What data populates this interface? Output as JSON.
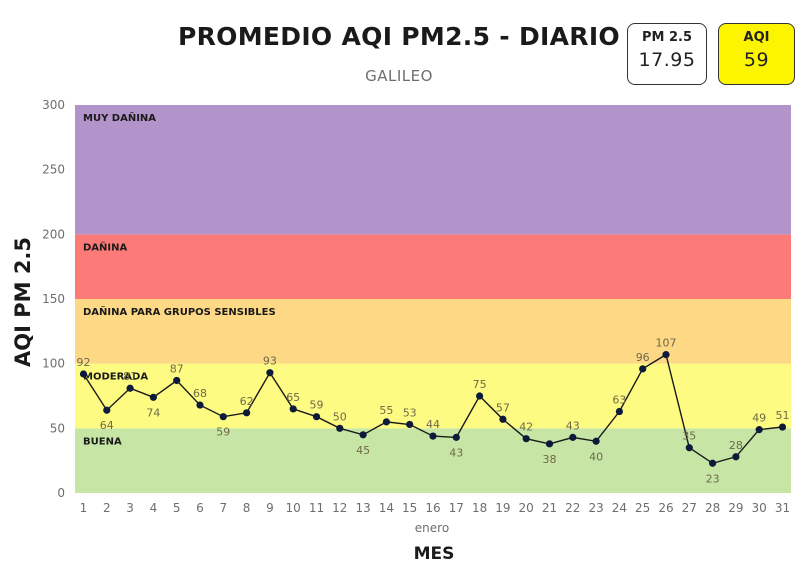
{
  "header": {
    "title": "PROMEDIO AQI PM2.5 - DIARIO",
    "subtitle": "GALILEO"
  },
  "cards": {
    "pm25": {
      "label": "PM 2.5",
      "value": "17.95"
    },
    "aqi": {
      "label": "AQI",
      "value": "59",
      "color": "#fdf400"
    }
  },
  "chart_data": {
    "type": "line",
    "title": "PROMEDIO AQI PM2.5 - DIARIO",
    "subtitle": "GALILEO",
    "xlabel": "MES",
    "x_group_label": "enero",
    "ylabel": "AQI PM 2.5",
    "ylim": [
      0,
      300
    ],
    "yticks": [
      0,
      50,
      100,
      150,
      200,
      250,
      300
    ],
    "x": [
      1,
      2,
      3,
      4,
      5,
      6,
      7,
      8,
      9,
      10,
      11,
      12,
      13,
      14,
      15,
      16,
      17,
      18,
      19,
      20,
      21,
      22,
      23,
      24,
      25,
      26,
      27,
      28,
      29,
      30,
      31
    ],
    "values": [
      92,
      64,
      81,
      74,
      87,
      68,
      59,
      62,
      93,
      65,
      59,
      50,
      45,
      55,
      53,
      44,
      43,
      75,
      57,
      42,
      38,
      43,
      40,
      63,
      96,
      107,
      35,
      23,
      28,
      49,
      51
    ],
    "label_positions": [
      "above",
      "below",
      "above",
      "below",
      "above",
      "above",
      "below",
      "above",
      "above",
      "above",
      "above",
      "above",
      "below",
      "above",
      "above",
      "above",
      "below",
      "above",
      "above",
      "above",
      "below",
      "above",
      "below",
      "above",
      "above",
      "above",
      "above",
      "below",
      "above",
      "above",
      "above"
    ],
    "line_color": "#1a1a1a",
    "marker_color": "#0d1a3a",
    "label_color": "#6f6a4a",
    "grid": false,
    "bands": [
      {
        "label": "BUENA",
        "from": 0,
        "to": 50,
        "color": "#c7e5a5"
      },
      {
        "label": "MODERADA",
        "from": 50,
        "to": 100,
        "color": "#fdfb82"
      },
      {
        "label": "DAÑINA PARA GRUPOS SENSIBLES",
        "from": 100,
        "to": 150,
        "color": "#fdd885"
      },
      {
        "label": "DAÑINA",
        "from": 150,
        "to": 200,
        "color": "#fc7a78"
      },
      {
        "label": "MUY DAÑINA",
        "from": 200,
        "to": 300,
        "color": "#b294cb"
      }
    ]
  }
}
